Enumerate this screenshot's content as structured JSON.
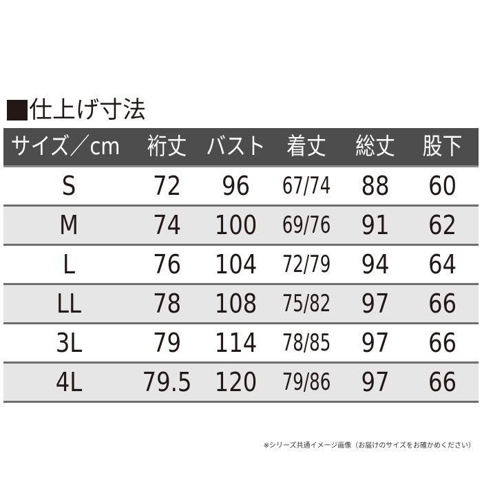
{
  "title": "仕上げ寸法",
  "colors": {
    "header_bg": "#4d4d4d",
    "alt_row": "#e6e6e6",
    "text": "#231815"
  },
  "headers": [
    "サイズ／cm",
    "裄丈",
    "バスト",
    "着丈",
    "総丈",
    "股下"
  ],
  "rows": [
    [
      "S",
      "72",
      "96",
      "67/74",
      "88",
      "60"
    ],
    [
      "M",
      "74",
      "100",
      "69/76",
      "91",
      "62"
    ],
    [
      "L",
      "76",
      "104",
      "72/79",
      "94",
      "64"
    ],
    [
      "LL",
      "78",
      "108",
      "75/82",
      "97",
      "66"
    ],
    [
      "3L",
      "79",
      "114",
      "78/85",
      "97",
      "66"
    ],
    [
      "4L",
      "79.5",
      "120",
      "79/86",
      "97",
      "66"
    ]
  ],
  "note": "※シリーズ共通イメージ画像（お届けのサイズをお確かめください）"
}
